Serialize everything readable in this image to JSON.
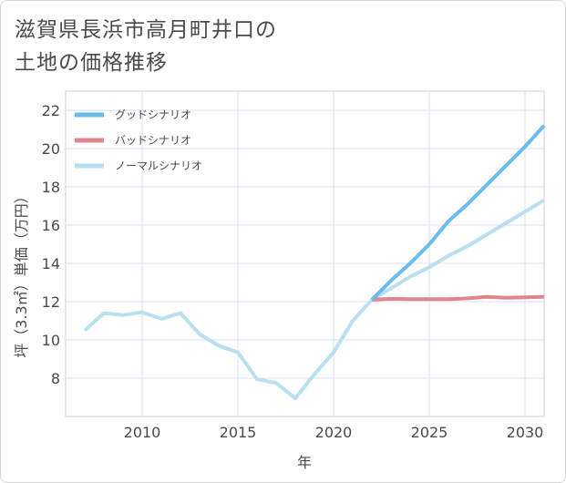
{
  "title": {
    "line1": "滋賀県長浜市高月町井口の",
    "line2": "土地の価格推移"
  },
  "chart_data": {
    "type": "line",
    "xlabel": "年",
    "ylabel": "坪（3.3㎡）単価（万円）",
    "xlim": [
      2006,
      2031
    ],
    "ylim": [
      6,
      23
    ],
    "x_ticks": [
      2010,
      2015,
      2020,
      2025,
      2030
    ],
    "y_ticks": [
      8,
      10,
      12,
      14,
      16,
      18,
      20,
      22
    ],
    "grid": true,
    "legend_position": "top-left",
    "series": [
      {
        "name": "グッドシナリオ",
        "color": "#6bbcec",
        "x": [
          2022,
          2023,
          2024,
          2025,
          2026,
          2027,
          2028,
          2029,
          2030,
          2031
        ],
        "values": [
          12.1,
          13.1,
          14.0,
          15.0,
          16.2,
          17.1,
          18.1,
          19.1,
          20.1,
          21.2
        ]
      },
      {
        "name": "バッドシナリオ",
        "color": "#e0868f",
        "x": [
          2022,
          2023,
          2024,
          2025,
          2026,
          2027,
          2028,
          2029,
          2030,
          2031
        ],
        "values": [
          12.1,
          12.15,
          12.13,
          12.13,
          12.13,
          12.17,
          12.25,
          12.2,
          12.23,
          12.25
        ]
      },
      {
        "name": "ノーマルシナリオ",
        "color": "#b9dff0",
        "x": [
          2007,
          2008,
          2009,
          2010,
          2011,
          2012,
          2013,
          2014,
          2015,
          2016,
          2017,
          2018,
          2019,
          2020,
          2021,
          2022,
          2023,
          2024,
          2025,
          2026,
          2027,
          2028,
          2029,
          2030,
          2031
        ],
        "values": [
          10.5,
          11.4,
          11.3,
          11.45,
          11.1,
          11.4,
          10.3,
          9.7,
          9.35,
          7.95,
          7.75,
          6.95,
          8.2,
          9.35,
          11.0,
          12.1,
          12.7,
          13.3,
          13.8,
          14.4,
          14.9,
          15.5,
          16.1,
          16.7,
          17.3
        ]
      }
    ]
  }
}
